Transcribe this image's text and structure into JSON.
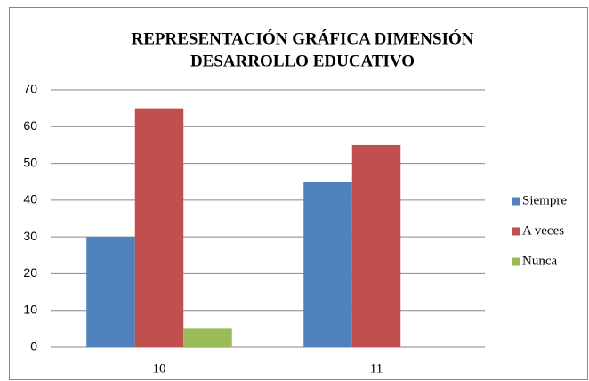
{
  "chart_data": {
    "type": "bar",
    "title": [
      "REPRESENTACIÓN GRÁFICA DIMENSIÓN",
      "DESARROLLO EDUCATIVO"
    ],
    "categories": [
      "10",
      "11"
    ],
    "series": [
      {
        "name": "Siempre",
        "color": "#4f81bd",
        "values": [
          30,
          45
        ]
      },
      {
        "name": "A veces",
        "color": "#c0504d",
        "values": [
          65,
          55
        ]
      },
      {
        "name": "Nunca",
        "color": "#9bbb59",
        "values": [
          5,
          0
        ]
      }
    ],
    "ylim": [
      0,
      70
    ],
    "yticks": [
      0,
      10,
      20,
      30,
      40,
      50,
      60,
      70
    ],
    "grid": true,
    "legend": "right"
  }
}
